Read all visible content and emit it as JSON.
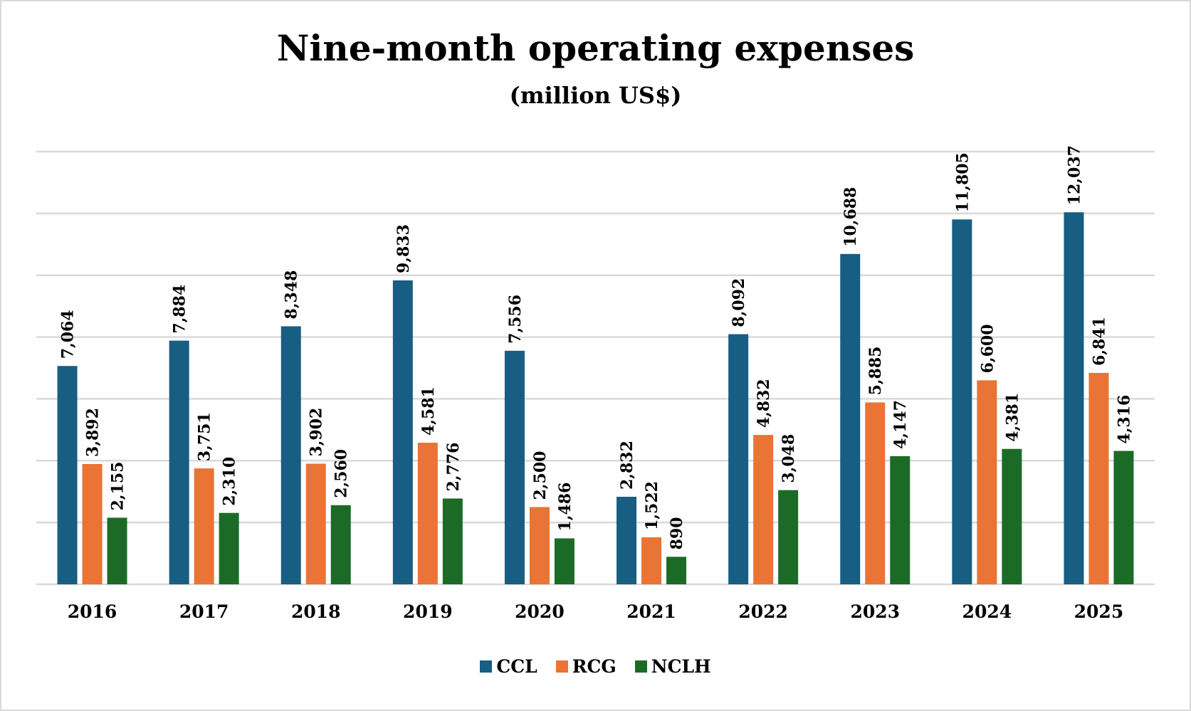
{
  "chart_data": {
    "type": "bar",
    "title": "Nine-month operating expenses",
    "subtitle": "(million US$)",
    "categories": [
      "2016",
      "2017",
      "2018",
      "2019",
      "2020",
      "2021",
      "2022",
      "2023",
      "2024",
      "2025"
    ],
    "series": [
      {
        "name": "CCL",
        "color": "#175e82",
        "values": [
          7064,
          7884,
          8348,
          9833,
          7556,
          2832,
          8092,
          10688,
          11805,
          12037
        ],
        "labels": [
          "7,064",
          "7,884",
          "8,348",
          "9,833",
          "7,556",
          "2,832",
          "8,092",
          "10,688",
          "11,805",
          "12,037"
        ]
      },
      {
        "name": "RCG",
        "color": "#e97435",
        "values": [
          3892,
          3751,
          3902,
          4581,
          2500,
          1522,
          4832,
          5885,
          6600,
          6841
        ],
        "labels": [
          "3,892",
          "3,751",
          "3,902",
          "4,581",
          "2,500",
          "1,522",
          "4,832",
          "5,885",
          "6,600",
          "6,841"
        ]
      },
      {
        "name": "NCLH",
        "color": "#1b6b27",
        "values": [
          2155,
          2310,
          2560,
          2776,
          1486,
          890,
          3048,
          4147,
          4381,
          4316
        ],
        "labels": [
          "2,155",
          "2,310",
          "2,560",
          "2,776",
          "1,486",
          "890",
          "3,048",
          "4,147",
          "4,381",
          "4,316"
        ]
      }
    ],
    "ylim": [
      0,
      14000
    ],
    "y_gridlines": [
      0,
      2000,
      4000,
      6000,
      8000,
      10000,
      12000,
      14000
    ],
    "y_tick_labels_shown": false,
    "grid": true,
    "legend_position": "bottom"
  }
}
